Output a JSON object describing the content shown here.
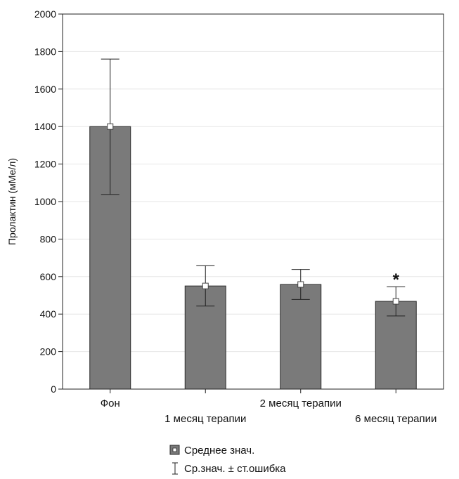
{
  "chart_data": {
    "type": "bar",
    "title": "",
    "xlabel": "",
    "ylabel": "Пролактин (мМе/л)",
    "ylim": [
      0,
      2000
    ],
    "yticks": [
      0,
      200,
      400,
      600,
      800,
      1000,
      1200,
      1400,
      1600,
      1800,
      2000
    ],
    "categories": [
      "Фон",
      "1 месяц терапии",
      "2 месяц терапии",
      "6 месяц терапии"
    ],
    "values": [
      1400,
      550,
      558,
      468
    ],
    "error_upper": [
      1760,
      658,
      638,
      546
    ],
    "error_lower": [
      1038,
      443,
      478,
      390
    ],
    "annotations": [
      {
        "category": "6 месяц терапии",
        "text": "*"
      }
    ],
    "grid": true,
    "legend_position": "bottom-center",
    "legend": {
      "mean_label": "Среднее знач.",
      "error_label": "Ср.знач. ± ст.ошибка"
    },
    "colors": {
      "bar": "#7a7a7a",
      "bar_edge": "#2a2a2a",
      "grid": "#e6e6e6",
      "axis": "#222222"
    }
  }
}
